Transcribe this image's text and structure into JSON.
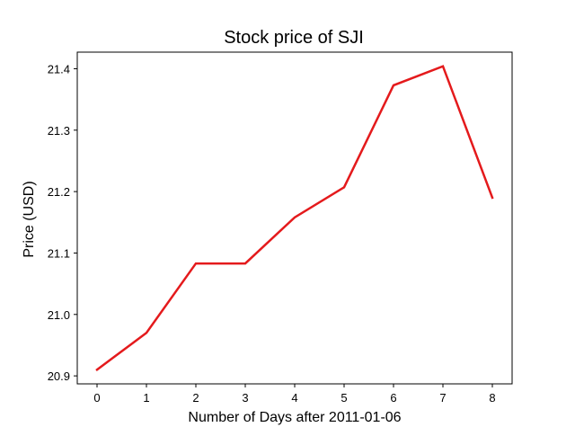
{
  "chart_data": {
    "type": "line",
    "title": "Stock price of SJI",
    "xlabel": "Number of Days after 2011-01-06",
    "ylabel": "Price (USD)",
    "x": [
      0,
      1,
      2,
      3,
      4,
      5,
      6,
      7,
      8
    ],
    "series": [
      {
        "values": [
          20.91,
          20.97,
          21.083,
          21.083,
          21.158,
          21.207,
          21.373,
          21.404,
          21.19
        ],
        "color": "#e41a1c"
      }
    ],
    "xlim": [
      -0.4,
      8.4
    ],
    "ylim": [
      20.887,
      21.427
    ],
    "xticks": [
      0,
      1,
      2,
      3,
      4,
      5,
      6,
      7,
      8
    ],
    "yticks": [
      20.9,
      21.0,
      21.1,
      21.2,
      21.3,
      21.4
    ],
    "grid": false,
    "legend": "none"
  }
}
